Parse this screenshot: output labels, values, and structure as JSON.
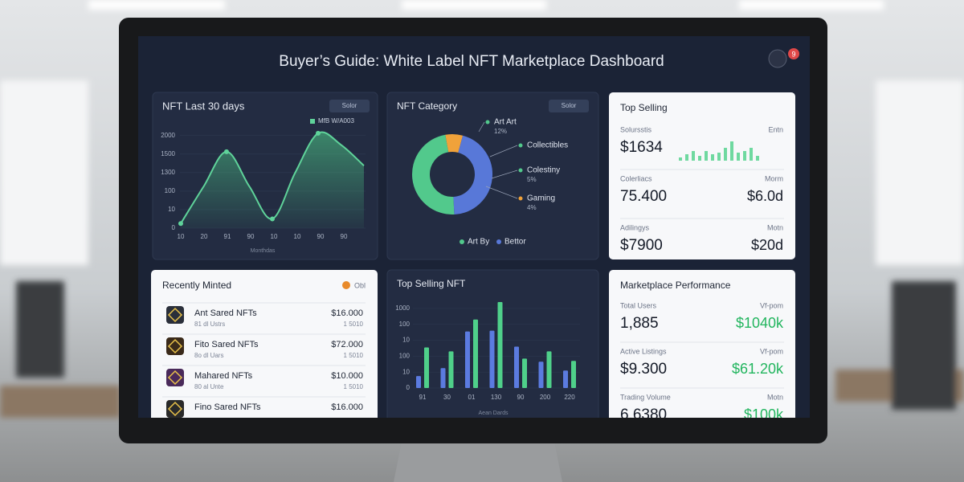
{
  "header": {
    "title": "Buyer’s Guide: White Label NFT Marketplace Dashboard",
    "badge": "9"
  },
  "trend": {
    "type": "line",
    "title": "NFT Last 30 days",
    "filter": "Solor",
    "legend": "MfB W/A003",
    "color": "#5fd39a",
    "values": [
      100,
      900,
      1650,
      900,
      200,
      1200,
      2050,
      1800,
      1350
    ],
    "ylim": [
      0,
      2100
    ],
    "yticks": [
      0,
      {
        "value": 400,
        "label": "10"
      },
      {
        "value": 800,
        "label": "100"
      },
      {
        "value": 1200,
        "label": "1300"
      },
      {
        "value": 1600,
        "label": "1500"
      },
      2000
    ],
    "xticks": [
      "10",
      "20",
      "91",
      "90",
      "10",
      "10",
      "90",
      "90"
    ],
    "x_label": "Monthdas"
  },
  "category": {
    "type": "pie",
    "title": "NFT Category",
    "filter": "Solor",
    "values": [
      7,
      45,
      48
    ],
    "colors": [
      "#f0a23a",
      "#5878d8",
      "#52c98c"
    ],
    "annotations": [
      {
        "label": "Art  Art",
        "sub": "12%",
        "color": "#52c98c"
      },
      {
        "label": "Collectibles",
        "color": "#52c98c"
      },
      {
        "label": "Colestiny",
        "sub": "5%",
        "color": "#52c98c"
      },
      {
        "label": "Gaming",
        "sub": "4%",
        "color": "#f0a23a"
      }
    ],
    "legend": [
      {
        "name": "Art By",
        "color": "#52c98c"
      },
      {
        "name": "Bettor",
        "color": "#5878d8"
      }
    ]
  },
  "top_selling": {
    "title": "Top Selling",
    "rows": [
      {
        "label": "Solursstis",
        "tag": "Entn",
        "value": "$1634"
      },
      {
        "label": "Colerliacs",
        "tag": "Morm",
        "value": "75.400",
        "change": "$6.0d"
      },
      {
        "label": "Adilingys",
        "tag": "Motn",
        "value": "$7900",
        "change": "$20d"
      }
    ],
    "sparkline": [
      4,
      8,
      12,
      6,
      12,
      8,
      10,
      16,
      24,
      10,
      12,
      16,
      6
    ],
    "color": "#6fd9a0"
  },
  "recent": {
    "title": "Recently Minted",
    "badge": "Obl",
    "items": [
      {
        "name": "Ant Sared NFTs",
        "sub": "81 dl Ustrs",
        "price": "$16.000",
        "sub2": "1 5010"
      },
      {
        "name": "Fito Sared NFTs",
        "sub": "8o dl Uars",
        "price": "$72.000",
        "sub2": "1 5010"
      },
      {
        "name": "Mahared NFTs",
        "sub": "80 al Unte",
        "price": "$10.000",
        "sub2": "1 5010"
      },
      {
        "name": "Fino Sared NFTs",
        "price": "$16.000"
      }
    ]
  },
  "top_nft": {
    "type": "bar",
    "title": "Top Selling NFT",
    "categories": [
      "91",
      "30",
      "01",
      "130",
      "90",
      "200",
      "220"
    ],
    "series": [
      {
        "color": "#5b7be0",
        "values": [
          150,
          250,
          710,
          720,
          520,
          330,
          220
        ]
      },
      {
        "color": "#4fd08a",
        "values": [
          510,
          460,
          860,
          1080,
          370,
          460,
          340
        ]
      }
    ],
    "ylim": [
      0,
      1100
    ],
    "yticks": [
      0,
      {
        "value": 200,
        "label": "10"
      },
      {
        "value": 400,
        "label": "100"
      },
      {
        "value": 600,
        "label": "10"
      },
      {
        "value": 800,
        "label": "100"
      },
      1000
    ],
    "x_label": "Aean Dards"
  },
  "performance": {
    "title": "Marketplace Performance",
    "rows": [
      {
        "label": "Total Users",
        "tag": "Vf-pom",
        "value": "1,885",
        "change": "$1040k"
      },
      {
        "label": "Active Listings",
        "tag": "Vf-pom",
        "value": "$9.300",
        "change": "$61.20k"
      },
      {
        "label": "Trading Volume",
        "tag": "Motn",
        "value": "6.6380",
        "change": "$100k"
      }
    ]
  }
}
